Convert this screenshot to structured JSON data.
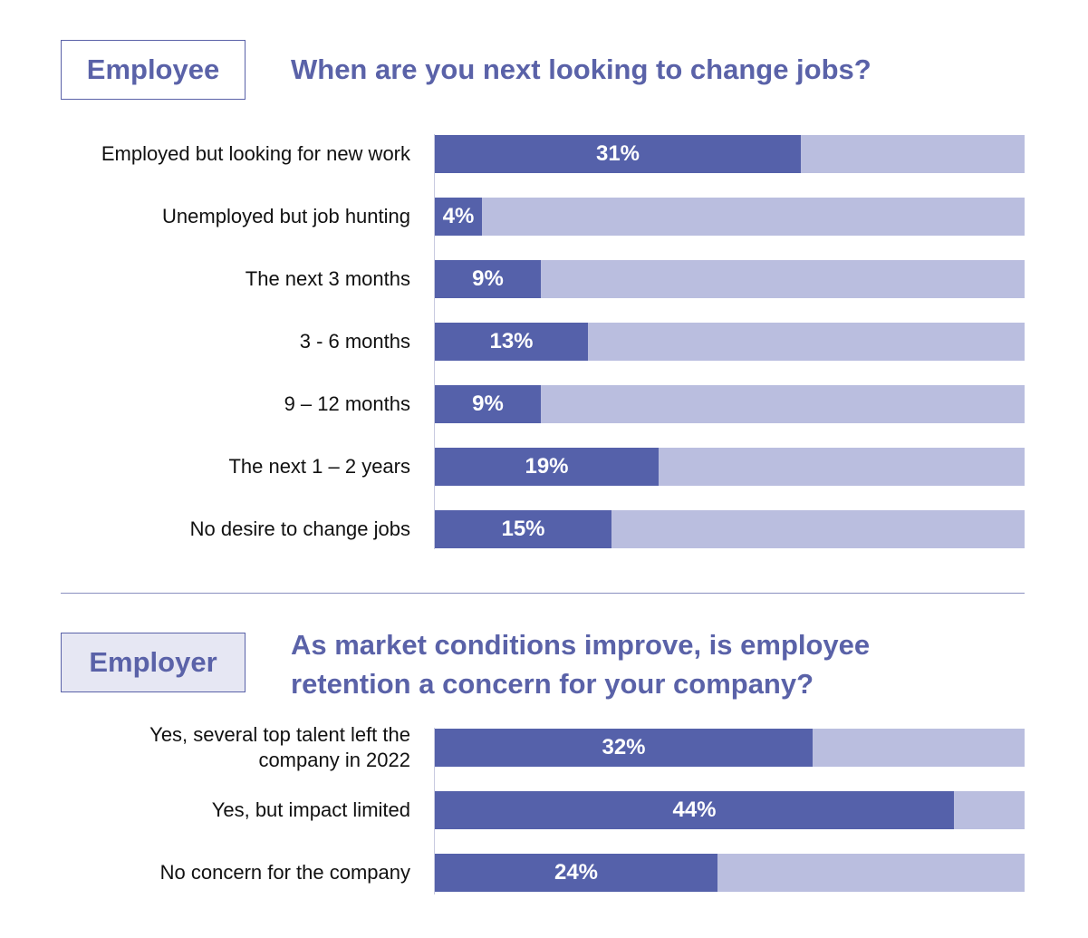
{
  "employee": {
    "tag": "Employee",
    "heading": "When are you next looking to change jobs?"
  },
  "employer": {
    "tag": "Employer",
    "heading": "As market conditions improve, is employee retention a concern for your company?"
  },
  "colors": {
    "bar_fill": "#5561aa",
    "bar_track": "#babedf",
    "heading": "#5a62a8",
    "employer_tag_bg": "#e6e7f3"
  },
  "chart_data": [
    {
      "type": "bar",
      "orientation": "horizontal",
      "title": "When are you next looking to change jobs?",
      "categories": [
        "Employed but looking for new work",
        "Unemployed but job hunting",
        "The next 3 months",
        "3 - 6 months",
        "9 – 12 months",
        "The next 1 – 2 years",
        "No desire to change jobs"
      ],
      "values": [
        31,
        4,
        9,
        13,
        9,
        19,
        15
      ],
      "labels": [
        "31%",
        "4%",
        "9%",
        "13%",
        "9%",
        "19%",
        "15%"
      ],
      "xlim": [
        0,
        50
      ],
      "unit": "%"
    },
    {
      "type": "bar",
      "orientation": "horizontal",
      "title": "As market conditions improve, is employee retention a concern for your company?",
      "categories": [
        "Yes, several top talent left the company in 2022",
        "Yes, but impact limited",
        "No concern for the company"
      ],
      "values": [
        32,
        44,
        24
      ],
      "labels": [
        "32%",
        "44%",
        "24%"
      ],
      "xlim": [
        0,
        50
      ],
      "unit": "%"
    }
  ]
}
